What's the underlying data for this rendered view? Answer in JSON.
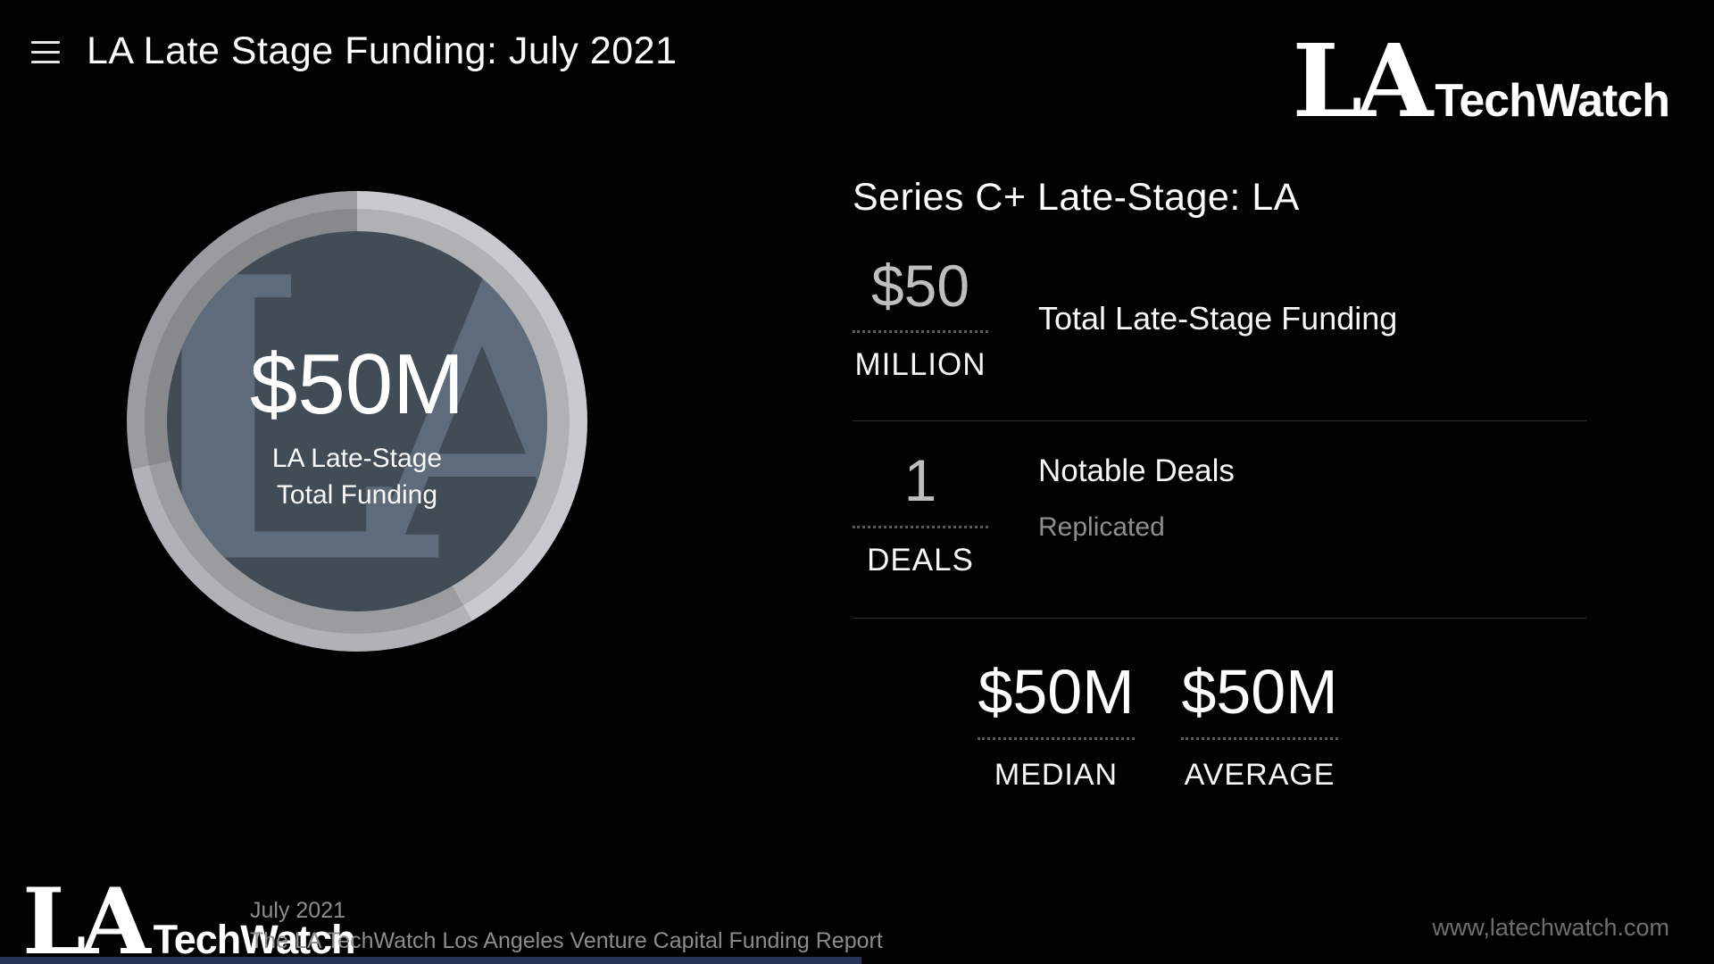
{
  "header": {
    "title": "LA Late Stage Funding: July 2021",
    "logo": {
      "la": "LA",
      "techwatch": "TechWatch"
    }
  },
  "donut": {
    "center_value": "$50M",
    "center_label_line1": "LA Late-Stage",
    "center_label_line2": "Total Funding",
    "watermark": "LA",
    "colors": {
      "ring_light": "#c9cacd",
      "ring_mid": "#b1b2b5",
      "ring_dark": "#9b9ca0",
      "core": "#424c57",
      "watermark": "#5d6b7a"
    }
  },
  "panel": {
    "heading": "Series C+ Late-Stage: LA",
    "stats": [
      {
        "value": "$50",
        "unit": "MILLION",
        "label": "Total Late-Stage Funding"
      },
      {
        "value": "1",
        "unit": "DEALS",
        "label": "Notable Deals",
        "sublabel": "Replicated"
      }
    ],
    "summary": [
      {
        "value": "$50M",
        "label": "MEDIAN"
      },
      {
        "value": "$50M",
        "label": "AVERAGE"
      }
    ]
  },
  "footer": {
    "logo": {
      "la": "LA",
      "techwatch": "TechWatch"
    },
    "period": "July 2021",
    "report_title": "The LA TechWatch Los Angeles Venture Capital Funding Report",
    "website": "www,latechwatch.com"
  },
  "chart_data": {
    "type": "pie",
    "title": "Series C+ Late-Stage: LA",
    "slices": [
      {
        "label": "LA Late-Stage Total Funding",
        "value_usd_millions": 50
      }
    ],
    "center_text": "$50M LA Late-Stage Total Funding",
    "kpis": {
      "total_late_stage_funding_usd_millions": 50,
      "notable_deals_count": 1,
      "notable_deals": [
        "Replicated"
      ],
      "median_usd_millions": 50,
      "average_usd_millions": 50
    },
    "legend_position": "none",
    "grid": false
  }
}
